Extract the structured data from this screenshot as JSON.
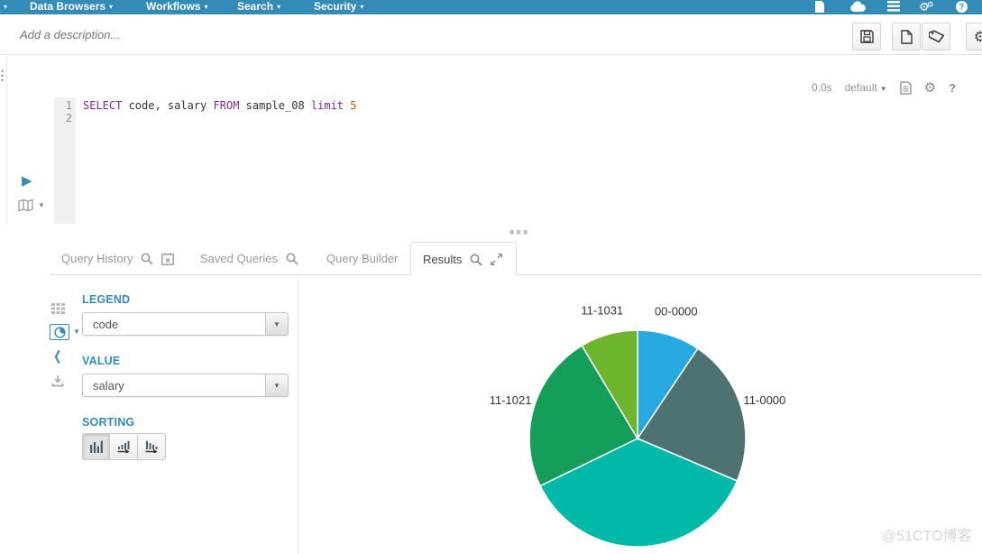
{
  "nav": {
    "items": [
      {
        "label": "Data Browsers"
      },
      {
        "label": "Workflows"
      },
      {
        "label": "Search"
      },
      {
        "label": "Security"
      }
    ],
    "right_icons": [
      "file-icon",
      "cloud-icon",
      "list-icon",
      "gears-icon",
      "help-icon"
    ]
  },
  "toolbar": {
    "description_placeholder": "Add a description...",
    "buttons": [
      "save",
      "new-document",
      "tag",
      "settings"
    ]
  },
  "editor": {
    "line_numbers": [
      "1",
      "2"
    ],
    "sql_tokens": [
      {
        "text": "SELECT",
        "type": "keyword"
      },
      {
        "text": " code, salary ",
        "type": "plain"
      },
      {
        "text": "FROM",
        "type": "keyword"
      },
      {
        "text": " sample_08 ",
        "type": "plain"
      },
      {
        "text": "limit",
        "type": "keyword"
      },
      {
        "text": " ",
        "type": "plain"
      },
      {
        "text": "5",
        "type": "number"
      }
    ],
    "status": {
      "duration": "0.0s",
      "database": "default"
    }
  },
  "tabs": [
    {
      "label": "Query History",
      "active": false
    },
    {
      "label": "Saved Queries",
      "active": false
    },
    {
      "label": "Query Builder",
      "active": false
    },
    {
      "label": "Results",
      "active": true
    }
  ],
  "results_panel": {
    "legend_label": "LEGEND",
    "legend_value": "code",
    "value_label": "VALUE",
    "value_value": "salary",
    "sorting_label": "SORTING"
  },
  "chart_data": {
    "type": "pie",
    "legend_field": "code",
    "value_field": "salary",
    "direction": "clockwise",
    "start_angle_deg": 0,
    "values_unit": "percent_estimated",
    "slices": [
      {
        "label": "00-0000",
        "percent": 9.4,
        "color": "#29a9e1"
      },
      {
        "label": "11-0000",
        "percent": 22.0,
        "color": "#4e7271"
      },
      {
        "label": "",
        "percent": 36.4,
        "color": "#00b9a8"
      },
      {
        "label": "11-1021",
        "percent": 23.6,
        "color": "#149e5a"
      },
      {
        "label": "11-1031",
        "percent": 8.6,
        "color": "#6cb52d"
      }
    ]
  },
  "watermark": "@51CTO博客",
  "colors": {
    "accent": "#338bb8",
    "keyword": "#7b2d90",
    "number": "#d35400",
    "tab_inactive": "#9b9b9b",
    "tab_active": "#444444"
  }
}
